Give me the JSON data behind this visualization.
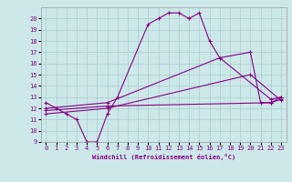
{
  "xlabel": "Windchill (Refroidissement éolien,°C)",
  "bg_color": "#cce8e8",
  "line_color": "#880088",
  "grid_color": "#aacccc",
  "xlim": [
    -0.5,
    23.5
  ],
  "ylim": [
    9,
    21
  ],
  "xticks": [
    0,
    1,
    2,
    3,
    4,
    5,
    6,
    7,
    8,
    9,
    10,
    11,
    12,
    13,
    14,
    15,
    16,
    17,
    18,
    19,
    20,
    21,
    22,
    23
  ],
  "yticks": [
    9,
    10,
    11,
    12,
    13,
    14,
    15,
    16,
    17,
    18,
    19,
    20
  ],
  "lines": [
    {
      "x": [
        0,
        1,
        2,
        3,
        4,
        5,
        6,
        7,
        10,
        11,
        12,
        13,
        14,
        15,
        16,
        17,
        20,
        21,
        22,
        23
      ],
      "y": [
        12.5,
        12.0,
        11.5,
        11.0,
        9.0,
        9.0,
        11.5,
        13.0,
        19.5,
        20.0,
        20.5,
        20.5,
        20.0,
        20.5,
        18.0,
        16.5,
        17.0,
        12.5,
        12.5,
        13.0
      ]
    },
    {
      "x": [
        0,
        6,
        17,
        22,
        23
      ],
      "y": [
        12.0,
        12.5,
        16.5,
        12.8,
        13.0
      ]
    },
    {
      "x": [
        0,
        6,
        20,
        23
      ],
      "y": [
        11.5,
        12.0,
        15.0,
        12.7
      ]
    },
    {
      "x": [
        0,
        6,
        22,
        23
      ],
      "y": [
        11.8,
        12.2,
        12.5,
        12.8
      ]
    }
  ]
}
